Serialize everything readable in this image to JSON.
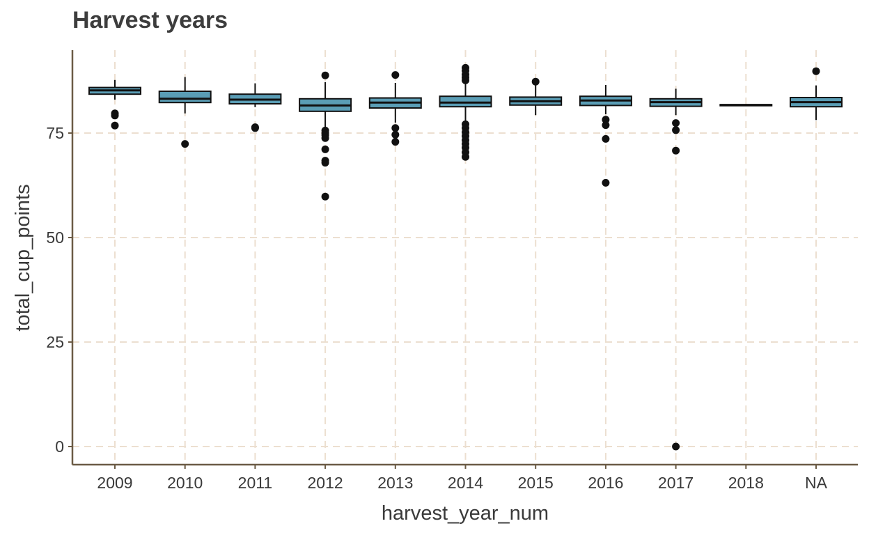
{
  "chart_data": {
    "type": "box",
    "title": "Harvest years",
    "xlabel": "harvest_year_num",
    "ylabel": "total_cup_points",
    "ylim": [
      -3.5,
      95
    ],
    "yticks": [
      0,
      25,
      50,
      75
    ],
    "grid": true,
    "colors": {
      "box_fill": "#5a9db5",
      "box_stroke": "#111111",
      "grid": "#ecdfd0",
      "axis": "#6b5b45",
      "outlier": "#111111"
    },
    "categories": [
      "2009",
      "2010",
      "2011",
      "2012",
      "2013",
      "2014",
      "2015",
      "2016",
      "2017",
      "2018",
      "NA"
    ],
    "boxes": [
      {
        "category": "2009",
        "whisker_low": 83.0,
        "q1": 84.3,
        "median": 85.2,
        "q3": 85.9,
        "whisker_high": 87.7,
        "outliers": [
          79.7,
          79.2,
          76.8
        ]
      },
      {
        "category": "2010",
        "whisker_low": 79.7,
        "q1": 82.3,
        "median": 83.2,
        "q3": 85.0,
        "whisker_high": 88.4,
        "outliers": [
          72.4
        ]
      },
      {
        "category": "2011",
        "whisker_low": 81.2,
        "q1": 82.0,
        "median": 83.0,
        "q3": 84.3,
        "whisker_high": 86.9,
        "outliers": [
          76.4,
          76.2
        ]
      },
      {
        "category": "2012",
        "whisker_low": 76.0,
        "q1": 80.2,
        "median": 81.6,
        "q3": 83.2,
        "whisker_high": 87.2,
        "outliers": [
          88.8,
          75.6,
          75.0,
          74.5,
          73.8,
          71.1,
          68.4,
          67.9,
          59.8
        ]
      },
      {
        "category": "2013",
        "whisker_low": 77.5,
        "q1": 81.0,
        "median": 82.3,
        "q3": 83.4,
        "whisker_high": 87.0,
        "outliers": [
          88.9,
          76.2,
          74.6,
          72.9
        ]
      },
      {
        "category": "2014",
        "whisker_low": 77.5,
        "q1": 81.3,
        "median": 82.3,
        "q3": 83.8,
        "whisker_high": 87.0,
        "outliers": [
          90.6,
          89.9,
          89.0,
          88.3,
          87.6,
          77.1,
          76.2,
          75.2,
          74.3,
          73.3,
          72.4,
          71.5,
          70.4,
          69.3
        ]
      },
      {
        "category": "2015",
        "whisker_low": 79.3,
        "q1": 81.7,
        "median": 82.6,
        "q3": 83.6,
        "whisker_high": 86.5,
        "outliers": [
          87.3
        ]
      },
      {
        "category": "2016",
        "whisker_low": 79.5,
        "q1": 81.6,
        "median": 82.8,
        "q3": 83.8,
        "whisker_high": 86.5,
        "outliers": [
          78.2,
          76.9,
          73.6,
          63.1
        ]
      },
      {
        "category": "2017",
        "whisker_low": 79.3,
        "q1": 81.4,
        "median": 82.4,
        "q3": 83.2,
        "whisker_high": 85.6,
        "outliers": [
          77.4,
          75.7,
          70.8,
          0.0
        ]
      },
      {
        "category": "2018",
        "whisker_low": 81.6,
        "q1": 81.6,
        "median": 81.7,
        "q3": 81.8,
        "whisker_high": 81.8,
        "outliers": []
      },
      {
        "category": "NA",
        "whisker_low": 78.1,
        "q1": 81.3,
        "median": 82.4,
        "q3": 83.5,
        "whisker_high": 86.4,
        "outliers": [
          89.8
        ]
      }
    ]
  }
}
